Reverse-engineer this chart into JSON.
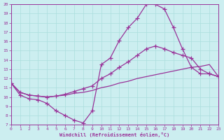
{
  "xlabel": "Windchill (Refroidissement éolien,°C)",
  "bg_color": "#cceef0",
  "line_color": "#993399",
  "grid_color": "#aadddd",
  "xlim": [
    0,
    23
  ],
  "ylim": [
    7,
    20
  ],
  "yticks": [
    7,
    8,
    9,
    10,
    11,
    12,
    13,
    14,
    15,
    16,
    17,
    18,
    19,
    20
  ],
  "xticks": [
    0,
    1,
    2,
    3,
    4,
    5,
    6,
    7,
    8,
    9,
    10,
    11,
    12,
    13,
    14,
    15,
    16,
    17,
    18,
    19,
    20,
    21,
    22,
    23
  ],
  "line_smooth_x": [
    0,
    1,
    2,
    3,
    4,
    5,
    6,
    7,
    8,
    9,
    10,
    11,
    12,
    13,
    14,
    15,
    16,
    17,
    18,
    19,
    20,
    21,
    22,
    23
  ],
  "line_smooth_y": [
    11.5,
    10.5,
    10.2,
    10.1,
    10.0,
    10.1,
    10.2,
    10.4,
    10.5,
    10.7,
    11.0,
    11.2,
    11.5,
    11.7,
    12.0,
    12.2,
    12.4,
    12.6,
    12.8,
    13.0,
    13.2,
    13.3,
    13.5,
    12.2
  ],
  "line_mid_x": [
    0,
    1,
    2,
    3,
    4,
    5,
    6,
    7,
    8,
    9,
    10,
    11,
    12,
    13,
    14,
    15,
    16,
    17,
    18,
    19,
    20,
    21,
    22,
    23
  ],
  "line_mid_y": [
    11.5,
    10.5,
    10.2,
    10.1,
    10.0,
    10.1,
    10.3,
    10.6,
    10.9,
    11.2,
    12.0,
    12.5,
    13.2,
    13.8,
    14.5,
    15.2,
    15.5,
    15.2,
    14.8,
    14.5,
    14.2,
    13.0,
    12.5,
    12.2
  ],
  "line_top_x": [
    0,
    1,
    2,
    3,
    4,
    5,
    6,
    7,
    8,
    9,
    10,
    11,
    12,
    13,
    14,
    15,
    16,
    17,
    18,
    19,
    20,
    21,
    22,
    23
  ],
  "line_top_y": [
    11.5,
    10.2,
    9.8,
    9.7,
    9.3,
    8.5,
    8.0,
    7.5,
    7.2,
    8.5,
    13.5,
    14.2,
    16.1,
    17.5,
    18.5,
    20.0,
    20.0,
    19.5,
    17.5,
    15.2,
    13.2,
    12.5,
    12.5,
    12.2
  ]
}
